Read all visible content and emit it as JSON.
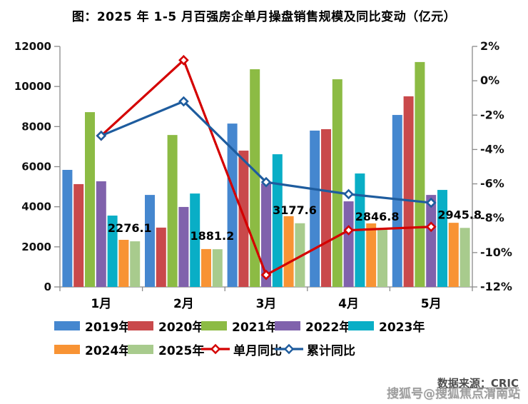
{
  "title": "图：2025 年 1-5 月百强房企单月操盘销售规模及同比变动（亿元）",
  "footer": {
    "source": "数据来源：CRIC",
    "watermark": "搜狐号@搜狐焦点渭南站"
  },
  "chart_data": {
    "type": "bar+line",
    "unit": "亿元",
    "grid": false,
    "legend_position": "bottom",
    "categories": [
      "1月",
      "2月",
      "3月",
      "4月",
      "5月"
    ],
    "bar_series": [
      {
        "name": "2019年",
        "color": "#4587CF",
        "values": [
          5840,
          4590,
          8150,
          7800,
          8580
        ]
      },
      {
        "name": "2020年",
        "color": "#C9494B",
        "values": [
          5130,
          2960,
          6800,
          7870,
          9510
        ]
      },
      {
        "name": "2021年",
        "color": "#8CBB44",
        "values": [
          8720,
          7580,
          10860,
          10360,
          11220
        ]
      },
      {
        "name": "2022年",
        "color": "#8062AC",
        "values": [
          5270,
          3990,
          5160,
          4270,
          4590
        ]
      },
      {
        "name": "2023年",
        "color": "#09AEC6",
        "values": [
          3560,
          4660,
          6620,
          5660,
          4840
        ]
      },
      {
        "name": "2024年",
        "color": "#F89334",
        "values": [
          2350,
          1890,
          3530,
          3170,
          3200
        ]
      },
      {
        "name": "2025年",
        "color": "#A8CB8D",
        "values": [
          2276.1,
          1881.2,
          3177.6,
          2846.8,
          2945.8
        ]
      }
    ],
    "line_series": [
      {
        "name": "单月同比",
        "color": "#D40000",
        "axis": "right",
        "values": [
          -3.2,
          1.2,
          -11.3,
          -8.7,
          -8.5
        ]
      },
      {
        "name": "累计同比",
        "color": "#1E5C9E",
        "axis": "right",
        "values": [
          -3.2,
          -1.2,
          -5.9,
          -6.6,
          -7.1
        ]
      }
    ],
    "bar_value_labels": {
      "series": "2025年",
      "values": [
        2276.1,
        1881.2,
        3177.6,
        2846.8,
        2945.8
      ]
    },
    "left_axis": {
      "min": 0,
      "max": 12000,
      "step": 2000,
      "tick_labels": [
        "0",
        "2000",
        "4000",
        "6000",
        "8000",
        "10000",
        "12000"
      ]
    },
    "right_axis": {
      "min": -12,
      "max": 2,
      "step": 2,
      "format": "percent",
      "tick_labels": [
        "2%",
        "0%",
        "-2%",
        "-4%",
        "-6%",
        "-8%",
        "-10%",
        "-12%"
      ]
    },
    "legend_rows": [
      [
        "2019年",
        "2020年",
        "2021年",
        "2022年",
        "2023年"
      ],
      [
        "2024年",
        "2025年",
        "单月同比",
        "累计同比"
      ]
    ]
  }
}
